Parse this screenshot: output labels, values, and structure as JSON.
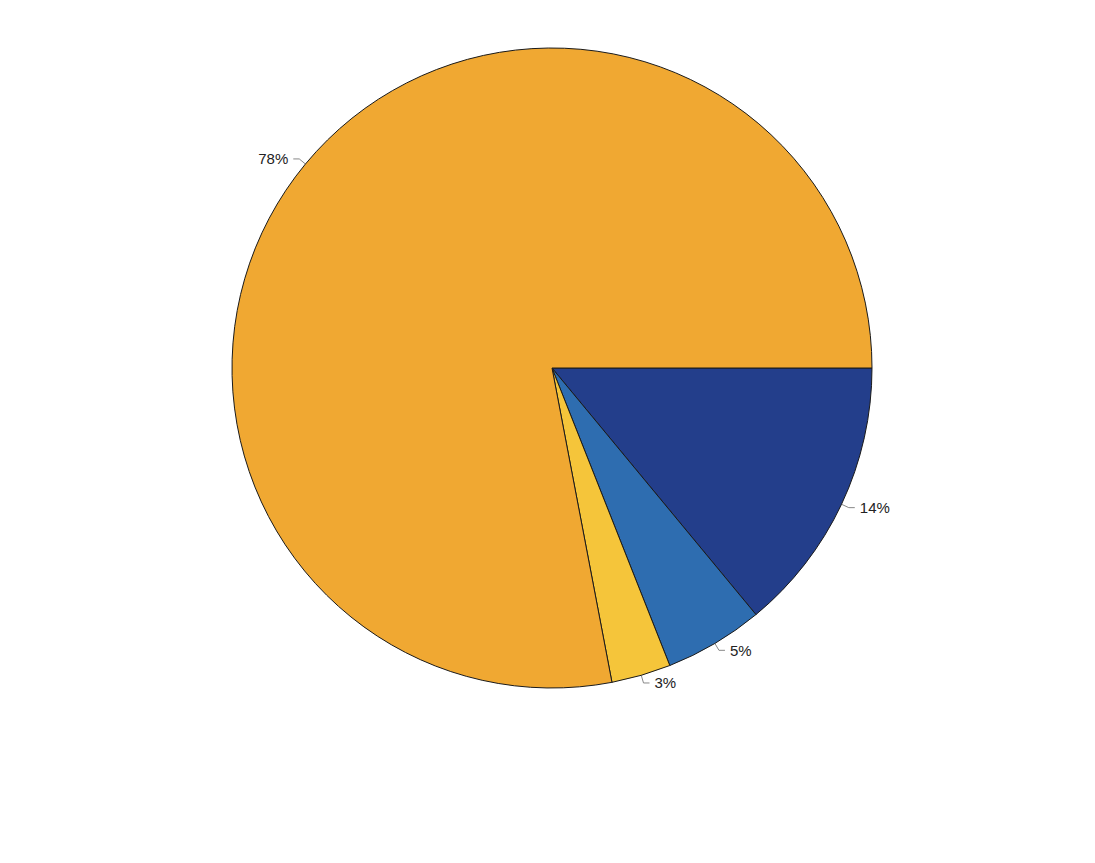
{
  "chart_data": {
    "type": "pie",
    "values": [
      14,
      5,
      3,
      78
    ],
    "value_labels": [
      "14%",
      "5%",
      "3%",
      "78%"
    ],
    "colors": [
      "#233e8b",
      "#2e6db0",
      "#f5c53a",
      "#f0a832"
    ],
    "data_labels": true
  }
}
